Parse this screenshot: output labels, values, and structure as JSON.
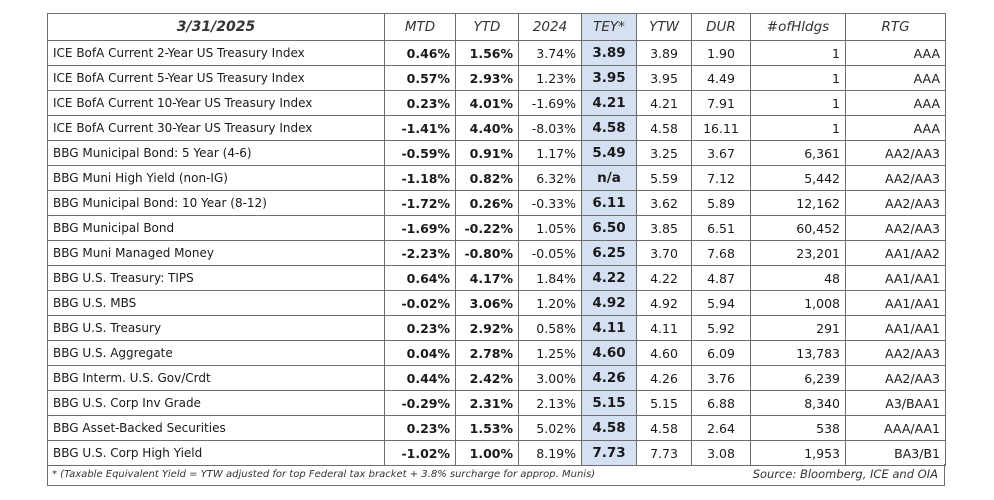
{
  "header": {
    "date": "3/31/2025",
    "mtd": "MTD",
    "ytd": "YTD",
    "y2024": "2024",
    "tey": "TEY*",
    "ytw": "YTW",
    "dur": "DUR",
    "holdings": "#ofHldgs",
    "rtg": "RTG"
  },
  "rows": [
    {
      "name": "ICE BofA Current 2-Year US Treasury Index",
      "mtd": "0.46%",
      "ytd": "1.56%",
      "y2024": "3.74%",
      "tey": "3.89",
      "ytw": "3.89",
      "dur": "1.90",
      "holdings": "1",
      "rtg": "AAA"
    },
    {
      "name": "ICE BofA Current 5-Year US Treasury Index",
      "mtd": "0.57%",
      "ytd": "2.93%",
      "y2024": "1.23%",
      "tey": "3.95",
      "ytw": "3.95",
      "dur": "4.49",
      "holdings": "1",
      "rtg": "AAA"
    },
    {
      "name": "ICE BofA Current 10-Year US Treasury Index",
      "mtd": "0.23%",
      "ytd": "4.01%",
      "y2024": "-1.69%",
      "tey": "4.21",
      "ytw": "4.21",
      "dur": "7.91",
      "holdings": "1",
      "rtg": "AAA"
    },
    {
      "name": "ICE BofA Current 30-Year US Treasury Index",
      "mtd": "-1.41%",
      "ytd": "4.40%",
      "y2024": "-8.03%",
      "tey": "4.58",
      "ytw": "4.58",
      "dur": "16.11",
      "holdings": "1",
      "rtg": "AAA"
    },
    {
      "name": "BBG Municipal Bond: 5 Year (4-6)",
      "mtd": "-0.59%",
      "ytd": "0.91%",
      "y2024": "1.17%",
      "tey": "5.49",
      "ytw": "3.25",
      "dur": "3.67",
      "holdings": "6,361",
      "rtg": "AA2/AA3"
    },
    {
      "name": "BBG Muni High Yield (non-IG)",
      "mtd": "-1.18%",
      "ytd": "0.82%",
      "y2024": "6.32%",
      "tey": "n/a",
      "ytw": "5.59",
      "dur": "7.12",
      "holdings": "5,442",
      "rtg": "AA2/AA3"
    },
    {
      "name": "BBG Municipal Bond: 10 Year (8-12)",
      "mtd": "-1.72%",
      "ytd": "0.26%",
      "y2024": "-0.33%",
      "tey": "6.11",
      "ytw": "3.62",
      "dur": "5.89",
      "holdings": "12,162",
      "rtg": "AA2/AA3"
    },
    {
      "name": "BBG Municipal Bond",
      "mtd": "-1.69%",
      "ytd": "-0.22%",
      "y2024": "1.05%",
      "tey": "6.50",
      "ytw": "3.85",
      "dur": "6.51",
      "holdings": "60,452",
      "rtg": "AA2/AA3"
    },
    {
      "name": "BBG Muni Managed Money",
      "mtd": "-2.23%",
      "ytd": "-0.80%",
      "y2024": "-0.05%",
      "tey": "6.25",
      "ytw": "3.70",
      "dur": "7.68",
      "holdings": "23,201",
      "rtg": "AA1/AA2"
    },
    {
      "name": "BBG U.S. Treasury: TIPS",
      "mtd": "0.64%",
      "ytd": "4.17%",
      "y2024": "1.84%",
      "tey": "4.22",
      "ytw": "4.22",
      "dur": "4.87",
      "holdings": "48",
      "rtg": "AA1/AA1"
    },
    {
      "name": "BBG U.S. MBS",
      "mtd": "-0.02%",
      "ytd": "3.06%",
      "y2024": "1.20%",
      "tey": "4.92",
      "ytw": "4.92",
      "dur": "5.94",
      "holdings": "1,008",
      "rtg": "AA1/AA1"
    },
    {
      "name": "BBG U.S. Treasury",
      "mtd": "0.23%",
      "ytd": "2.92%",
      "y2024": "0.58%",
      "tey": "4.11",
      "ytw": "4.11",
      "dur": "5.92",
      "holdings": "291",
      "rtg": "AA1/AA1"
    },
    {
      "name": "BBG U.S. Aggregate",
      "mtd": "0.04%",
      "ytd": "2.78%",
      "y2024": "1.25%",
      "tey": "4.60",
      "ytw": "4.60",
      "dur": "6.09",
      "holdings": "13,783",
      "rtg": "AA2/AA3"
    },
    {
      "name": "BBG Interm. U.S. Gov/Crdt",
      "mtd": "0.44%",
      "ytd": "2.42%",
      "y2024": "3.00%",
      "tey": "4.26",
      "ytw": "4.26",
      "dur": "3.76",
      "holdings": "6,239",
      "rtg": "AA2/AA3"
    },
    {
      "name": "BBG U.S. Corp Inv Grade",
      "mtd": "-0.29%",
      "ytd": "2.31%",
      "y2024": "2.13%",
      "tey": "5.15",
      "ytw": "5.15",
      "dur": "6.88",
      "holdings": "8,340",
      "rtg": "A3/BAA1"
    },
    {
      "name": "BBG Asset-Backed Securities",
      "mtd": "0.23%",
      "ytd": "1.53%",
      "y2024": "5.02%",
      "tey": "4.58",
      "ytw": "4.58",
      "dur": "2.64",
      "holdings": "538",
      "rtg": "AAA/AA1"
    },
    {
      "name": "BBG U.S. Corp High Yield",
      "mtd": "-1.02%",
      "ytd": "1.00%",
      "y2024": "8.19%",
      "tey": "7.73",
      "ytw": "7.73",
      "dur": "3.08",
      "holdings": "1,953",
      "rtg": "BA3/B1"
    }
  ],
  "footer": {
    "note": "* (Taxable Equivalent Yield = YTW adjusted for top Federal tax bracket + 3.8% surcharge for approp. Munis)",
    "source": "Source: Bloomberg, ICE and OIA"
  },
  "colors": {
    "tey_highlight": "#d6e0f3",
    "border": "#6e6e6e"
  }
}
